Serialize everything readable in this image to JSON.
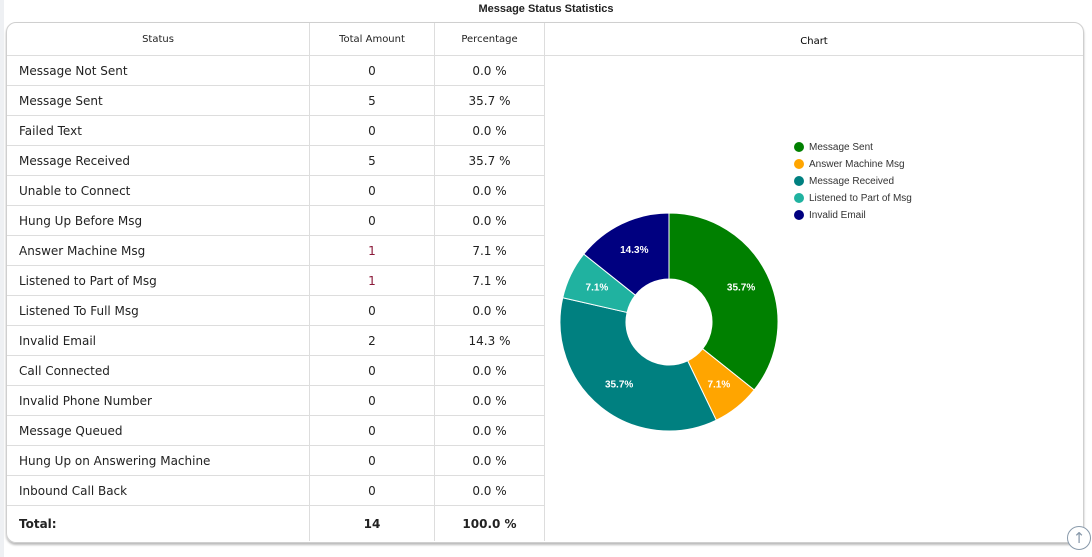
{
  "title": "Message Status Statistics",
  "headers": {
    "status": "Status",
    "total": "Total Amount",
    "percentage": "Percentage",
    "chart": "Chart"
  },
  "rows": [
    {
      "status": "Message Not Sent",
      "total": "0",
      "pct": "0.0 %"
    },
    {
      "status": "Message Sent",
      "total": "5",
      "pct": "35.7 %"
    },
    {
      "status": "Failed Text",
      "total": "0",
      "pct": "0.0 %"
    },
    {
      "status": "Message Received",
      "total": "5",
      "pct": "35.7 %"
    },
    {
      "status": "Unable to Connect",
      "total": "0",
      "pct": "0.0 %"
    },
    {
      "status": "Hung Up Before Msg",
      "total": "0",
      "pct": "0.0 %"
    },
    {
      "status": "Answer Machine Msg",
      "total": "1",
      "pct": "7.1 %"
    },
    {
      "status": "Listened to Part of Msg",
      "total": "1",
      "pct": "7.1 %"
    },
    {
      "status": "Listened To Full Msg",
      "total": "0",
      "pct": "0.0 %"
    },
    {
      "status": "Invalid Email",
      "total": "2",
      "pct": "14.3 %"
    },
    {
      "status": "Call Connected",
      "total": "0",
      "pct": "0.0 %"
    },
    {
      "status": "Invalid Phone Number",
      "total": "0",
      "pct": "0.0 %"
    },
    {
      "status": "Message Queued",
      "total": "0",
      "pct": "0.0 %"
    },
    {
      "status": "Hung Up on Answering Machine",
      "total": "0",
      "pct": "0.0 %"
    },
    {
      "status": "Inbound Call Back",
      "total": "0",
      "pct": "0.0 %"
    }
  ],
  "total": {
    "label": "Total:",
    "total": "14",
    "pct": "100.0 %"
  },
  "chart_data": {
    "type": "pie",
    "donut": true,
    "categories": [
      "Message Sent",
      "Answer Machine Msg",
      "Message Received",
      "Listened to Part of Msg",
      "Invalid Email"
    ],
    "values": [
      5,
      1,
      5,
      1,
      2
    ],
    "labels": [
      "35.7%",
      "7.1%",
      "35.7%",
      "7.1%",
      "14.3%"
    ],
    "colors": [
      "#008000",
      "#ffa500",
      "#008080",
      "#20b2a0",
      "#000080"
    ],
    "legend": "right"
  },
  "icons": {
    "scroll_top": "arrow-up-circle-icon"
  }
}
